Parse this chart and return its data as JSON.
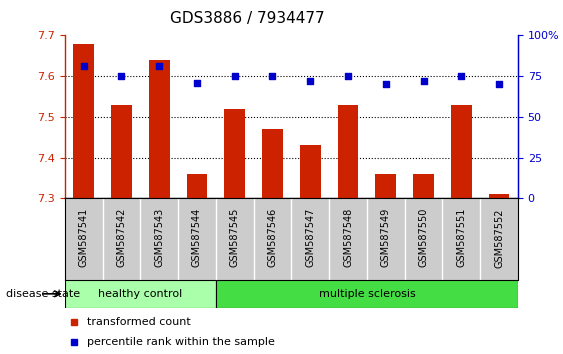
{
  "title": "GDS3886 / 7934477",
  "samples": [
    "GSM587541",
    "GSM587542",
    "GSM587543",
    "GSM587544",
    "GSM587545",
    "GSM587546",
    "GSM587547",
    "GSM587548",
    "GSM587549",
    "GSM587550",
    "GSM587551",
    "GSM587552"
  ],
  "bar_values": [
    7.68,
    7.53,
    7.64,
    7.36,
    7.52,
    7.47,
    7.43,
    7.53,
    7.36,
    7.36,
    7.53,
    7.31
  ],
  "percentile_values": [
    81,
    75,
    81,
    71,
    75,
    75,
    72,
    75,
    70,
    72,
    75,
    70
  ],
  "bar_color": "#cc2200",
  "percentile_color": "#0000cc",
  "ylim_left": [
    7.3,
    7.7
  ],
  "ylim_right": [
    0,
    100
  ],
  "yticks_left": [
    7.3,
    7.4,
    7.5,
    7.6,
    7.7
  ],
  "yticks_right": [
    0,
    25,
    50,
    75,
    100
  ],
  "ytick_labels_right": [
    "0",
    "25",
    "50",
    "75",
    "100%"
  ],
  "grid_values": [
    7.4,
    7.5,
    7.6
  ],
  "healthy_count": 4,
  "ms_count": 8,
  "group_labels": [
    "healthy control",
    "multiple sclerosis"
  ],
  "healthy_color": "#aaffaa",
  "ms_color": "#44dd44",
  "xtick_bg_color": "#cccccc",
  "disease_state_label": "disease state",
  "legend_bar_label": "transformed count",
  "legend_dot_label": "percentile rank within the sample",
  "bar_width": 0.55,
  "bar_bottom": 7.3,
  "fig_width": 5.63,
  "fig_height": 3.54,
  "dpi": 100,
  "title_fontsize": 11,
  "axis_label_fontsize": 8,
  "tick_fontsize": 8,
  "xtick_fontsize": 7
}
